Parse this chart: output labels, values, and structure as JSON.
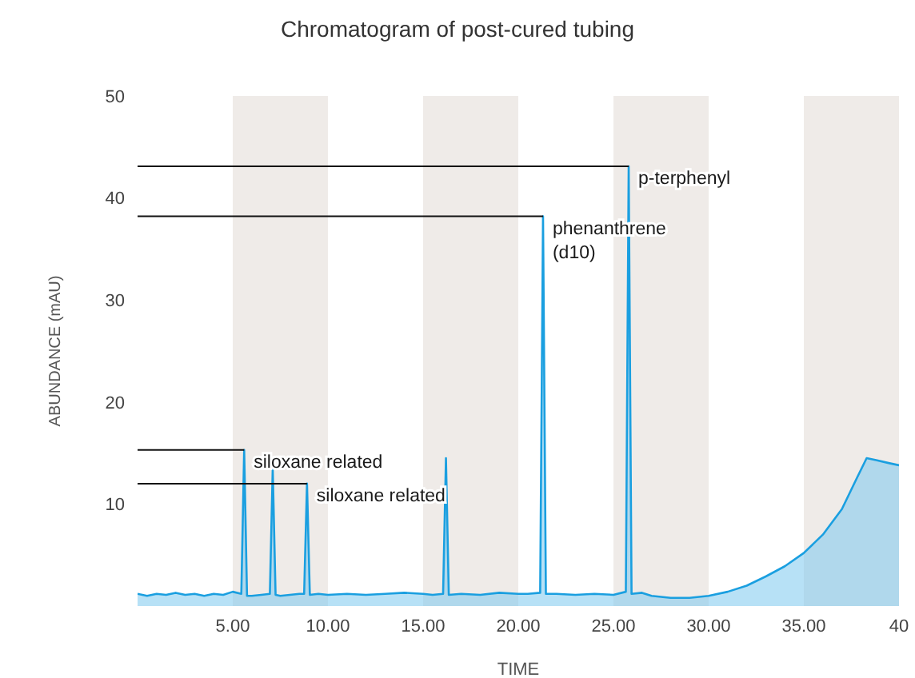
{
  "chart_data": {
    "type": "area",
    "title": "Chromatogram of post-cured tubing",
    "xlabel": "TIME",
    "ylabel": "ABUNDANCE (mAU)",
    "x": [
      0,
      0.5,
      1,
      1.5,
      2,
      2.5,
      3,
      3.5,
      4,
      4.5,
      5,
      5.45,
      5.6,
      5.75,
      6,
      6.5,
      6.95,
      7.1,
      7.25,
      7.5,
      8,
      8.5,
      8.75,
      8.9,
      9.05,
      9.5,
      10,
      11,
      12,
      13,
      14,
      15,
      15.5,
      16.05,
      16.2,
      16.35,
      17,
      18,
      19,
      20,
      20.5,
      21.15,
      21.3,
      21.45,
      22,
      23,
      24,
      25,
      25.65,
      25.8,
      25.95,
      26.5,
      27,
      28,
      29,
      30,
      31,
      32,
      33,
      34,
      35,
      36,
      37,
      37.8,
      38.3,
      38.8,
      39.5,
      40
    ],
    "series": [
      {
        "color": "#1a9fe0",
        "values": [
          1.2,
          1.0,
          1.2,
          1.1,
          1.3,
          1.1,
          1.2,
          1.0,
          1.2,
          1.1,
          1.4,
          1.2,
          15.3,
          1.0,
          1.0,
          1.1,
          1.2,
          13.5,
          1.1,
          1.0,
          1.1,
          1.2,
          1.2,
          12,
          1.1,
          1.2,
          1.1,
          1.2,
          1.1,
          1.2,
          1.3,
          1.2,
          1.1,
          1.2,
          14.5,
          1.1,
          1.2,
          1.1,
          1.3,
          1.2,
          1.2,
          1.3,
          38.2,
          1.2,
          1.2,
          1.1,
          1.2,
          1.1,
          1.4,
          43.1,
          1.2,
          1.3,
          1.0,
          0.8,
          0.8,
          1.0,
          1.4,
          2.0,
          2.9,
          3.9,
          5.2,
          7.0,
          9.5,
          12.6,
          14.5,
          14.3,
          14.0,
          13.8
        ]
      }
    ],
    "xlim": [
      0,
      40
    ],
    "xticks": [
      {
        "value": 5,
        "label": "5.00"
      },
      {
        "value": 10,
        "label": "10.00"
      },
      {
        "value": 15,
        "label": "15.00"
      },
      {
        "value": 20,
        "label": "20.00"
      },
      {
        "value": 25,
        "label": "25.00"
      },
      {
        "value": 30,
        "label": "30.00"
      },
      {
        "value": 35,
        "label": "35.00"
      },
      40
    ],
    "ylim": [
      0,
      50
    ],
    "yticks": [
      10,
      20,
      30,
      40,
      50
    ],
    "bands": [
      {
        "axis": "x",
        "from": 5,
        "to": 10,
        "color": "#efebe8"
      },
      {
        "axis": "x",
        "from": 15,
        "to": 20,
        "color": "#efebe8"
      },
      {
        "axis": "x",
        "from": 25,
        "to": 30,
        "color": "#efebe8"
      },
      {
        "axis": "x",
        "from": 35,
        "to": 40,
        "color": "#efebe8"
      }
    ],
    "annotations": [
      {
        "text": "siloxane related",
        "x": 5.6,
        "y": 15.3
      },
      {
        "text": "siloxane related",
        "x": 8.9,
        "y": 12
      },
      {
        "text": "phenanthrene\n(d10)",
        "x": 21.3,
        "y": 38.2
      },
      {
        "text": "p-terphenyl",
        "x": 25.8,
        "y": 43.1
      }
    ],
    "grid": false,
    "marker": "none"
  }
}
